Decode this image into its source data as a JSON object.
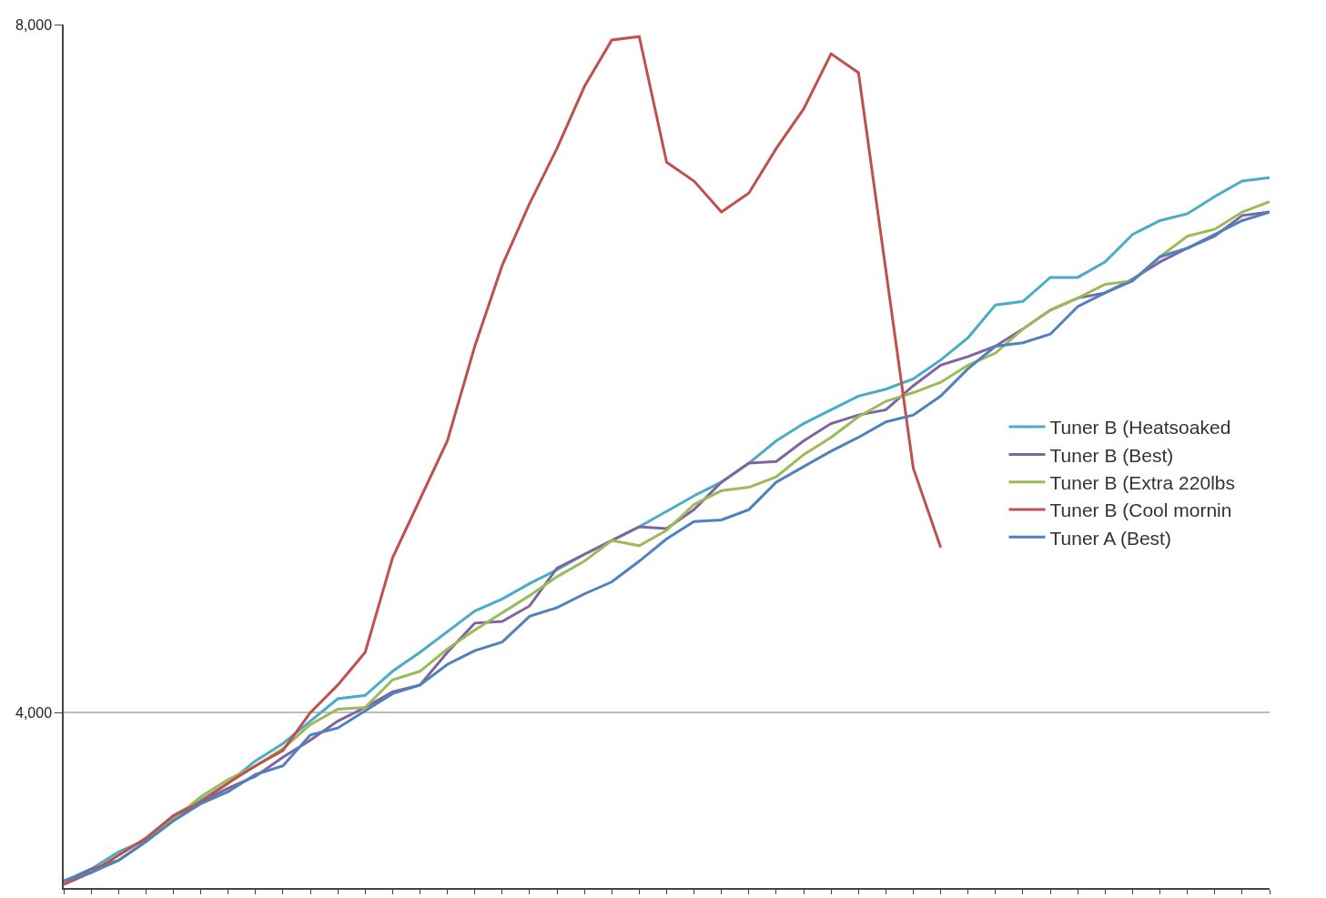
{
  "chart_data": {
    "type": "line",
    "categories": [
      null,
      null,
      null,
      null,
      null,
      null,
      null,
      null,
      null,
      null,
      null,
      null,
      null,
      null,
      null,
      null,
      null,
      null,
      null,
      null,
      null,
      null,
      null,
      null,
      null,
      null,
      null,
      null,
      null,
      null,
      null,
      null,
      null,
      null,
      null,
      null,
      null,
      null,
      null,
      null,
      null,
      null,
      null,
      null,
      null
    ],
    "series": [
      {
        "name": "Tuner B (Heatsoaked",
        "color": "#4bacc6",
        "values": [
          3020,
          3090,
          3190,
          3260,
          3400,
          3490,
          3590,
          3720,
          3820,
          3950,
          4080,
          4100,
          4240,
          4350,
          4470,
          4590,
          4660,
          4750,
          4830,
          4920,
          5000,
          5080,
          5170,
          5260,
          5340,
          5450,
          5580,
          5680,
          5760,
          5840,
          5880,
          5940,
          6050,
          6180,
          6370,
          6390,
          6530,
          6530,
          6620,
          6780,
          6860,
          6900,
          7000,
          7090,
          7110
        ]
      },
      {
        "name": "Tuner B (Best)",
        "color": "#8064a2",
        "values": [
          3010,
          3090,
          3140,
          3250,
          3380,
          3480,
          3560,
          3630,
          3740,
          3840,
          3950,
          4030,
          4120,
          4160,
          4350,
          4520,
          4530,
          4620,
          4840,
          4920,
          5000,
          5080,
          5070,
          5180,
          5340,
          5450,
          5460,
          5580,
          5680,
          5730,
          5760,
          5900,
          6020,
          6070,
          6130,
          6230,
          6340,
          6410,
          6440,
          6520,
          6620,
          6700,
          6770,
          6890,
          6910
        ]
      },
      {
        "name": "Tuner B (Extra 220lbs",
        "color": "#9bbb59",
        "values": [
          3010,
          3070,
          3170,
          3270,
          3380,
          3510,
          3610,
          3690,
          3790,
          3930,
          4020,
          4030,
          4190,
          4240,
          4370,
          4480,
          4580,
          4680,
          4790,
          4880,
          5000,
          4970,
          5060,
          5210,
          5290,
          5310,
          5370,
          5500,
          5600,
          5720,
          5810,
          5860,
          5920,
          6020,
          6090,
          6230,
          6340,
          6410,
          6490,
          6510,
          6650,
          6770,
          6810,
          6910,
          6970
        ]
      },
      {
        "name": "Tuner B (Cool mornin",
        "color": "#c0504d",
        "values": [
          3000,
          3070,
          3170,
          3270,
          3400,
          3480,
          3590,
          3690,
          3780,
          4000,
          4160,
          4350,
          4900,
          5240,
          5580,
          6130,
          6600,
          6960,
          7280,
          7640,
          7910,
          7930,
          7200,
          7090,
          6910,
          7020,
          7280,
          7510,
          7830,
          7720,
          6570,
          5420,
          4960,
          null,
          null,
          null,
          null,
          null,
          null,
          null,
          null,
          null,
          null,
          null,
          null
        ]
      },
      {
        "name": "Tuner A (Best)",
        "color": "#4f81bd",
        "values": [
          3020,
          3070,
          3140,
          3250,
          3370,
          3470,
          3540,
          3640,
          3690,
          3870,
          3910,
          4010,
          4110,
          4160,
          4280,
          4360,
          4410,
          4560,
          4610,
          4690,
          4760,
          4880,
          5010,
          5110,
          5120,
          5180,
          5340,
          5430,
          5520,
          5600,
          5690,
          5730,
          5840,
          6000,
          6130,
          6150,
          6200,
          6360,
          6440,
          6510,
          6650,
          6700,
          6780,
          6860,
          6910
        ]
      }
    ],
    "ylim": [
      2980,
      8000
    ],
    "yticks": [
      {
        "value": 4000,
        "label": "4,000"
      },
      {
        "value": 8000,
        "label": "8,000"
      }
    ],
    "grid": "y",
    "legend": "right",
    "tick_labels": "y",
    "marker": "none",
    "line_style": "solid"
  }
}
